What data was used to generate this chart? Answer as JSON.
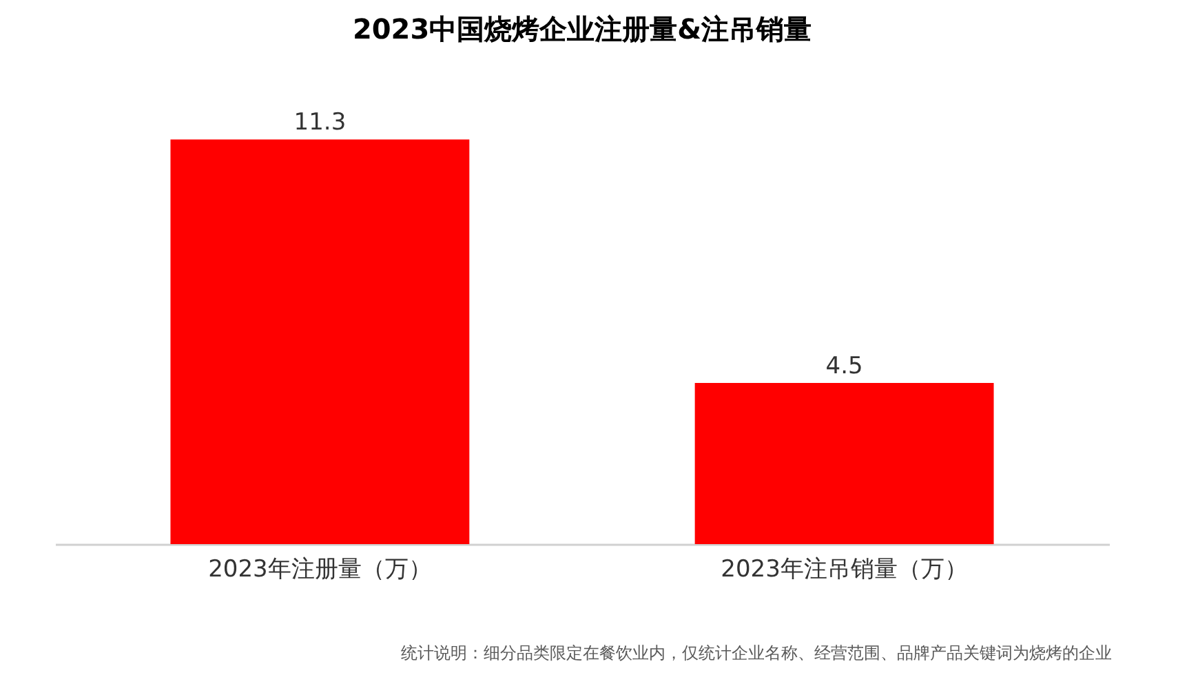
{
  "chart_data": {
    "type": "bar",
    "title": "2023中国烧烤企业注册量&注吊销量",
    "categories": [
      "2023年注册量（万）",
      "2023年注吊销量（万）"
    ],
    "values": [
      11.3,
      4.5
    ],
    "color": "#ff0000",
    "data_labels": true,
    "annotations": [
      "统计说明：细分品类限定在餐饮业内，仅统计企业名称、经营范围、品牌产品关键词为烧烤的企业"
    ]
  }
}
